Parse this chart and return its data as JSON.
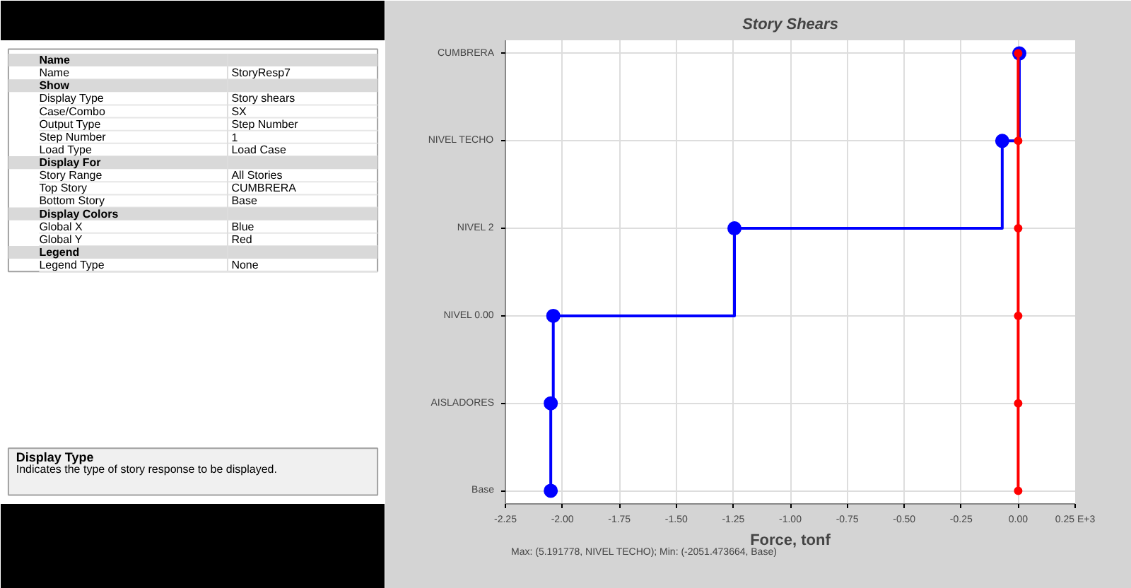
{
  "chart_data": [
    {
      "type": "other",
      "categories": [
        "Name",
        "Name",
        "Show",
        "Display Type",
        "Case/Combo",
        "Output Type",
        "Step Number",
        "Load Type",
        "Display For",
        "Story Range",
        "Top Story",
        "Bottom Story",
        "Display Colors",
        "Global X",
        "Global Y",
        "Legend",
        "Legend Type"
      ],
      "value_labels": [
        null,
        "StoryResp7",
        null,
        "Story shears",
        "SX",
        "Step Number",
        "1",
        "Load Case",
        null,
        "All Stories",
        "CUMBRERA",
        "Base",
        null,
        "Blue",
        "Red",
        null,
        "None"
      ],
      "annotations": [
        "Display Type",
        "Indicates the type of story response to be displayed."
      ]
    },
    {
      "type": "step",
      "title": "Story Shears",
      "xlabel": "Force, tonf",
      "xlim": [
        -2.25,
        0.25
      ],
      "xticks": [
        {
          "value": -2.25,
          "label": "-2.25"
        },
        {
          "value": -2,
          "label": "-2.00"
        },
        {
          "value": -1.75,
          "label": "-1.75"
        },
        {
          "value": -1.5,
          "label": "-1.50"
        },
        {
          "value": -1.25,
          "label": "-1.25"
        },
        {
          "value": -1,
          "label": "-1.00"
        },
        {
          "value": -0.75,
          "label": "-0.75"
        },
        {
          "value": -0.5,
          "label": "-0.50"
        },
        {
          "value": -0.25,
          "label": "-0.25"
        },
        {
          "value": 0,
          "label": "0.00"
        },
        {
          "value": 0.25,
          "label": "0.25 E+3"
        }
      ],
      "orientation": "horizontal",
      "categories": [
        "CUMBRERA",
        "NIVEL TECHO",
        "NIVEL 2",
        "NIVEL 0.00",
        "AISLADORES",
        "Base"
      ],
      "grid": true,
      "marker": "circle",
      "series": [
        {
          "color": "#0000ff",
          "values": [
            0.005,
            -0.07,
            -1.245,
            -2.04,
            -2.051,
            -2.051
          ]
        },
        {
          "color": "#ff0000",
          "values": [
            0,
            0,
            0,
            0,
            0,
            0
          ]
        }
      ],
      "annotations": [
        "Max: (5.191778, NIVEL TECHO);  Min: (-2051.473664, Base)"
      ]
    }
  ]
}
